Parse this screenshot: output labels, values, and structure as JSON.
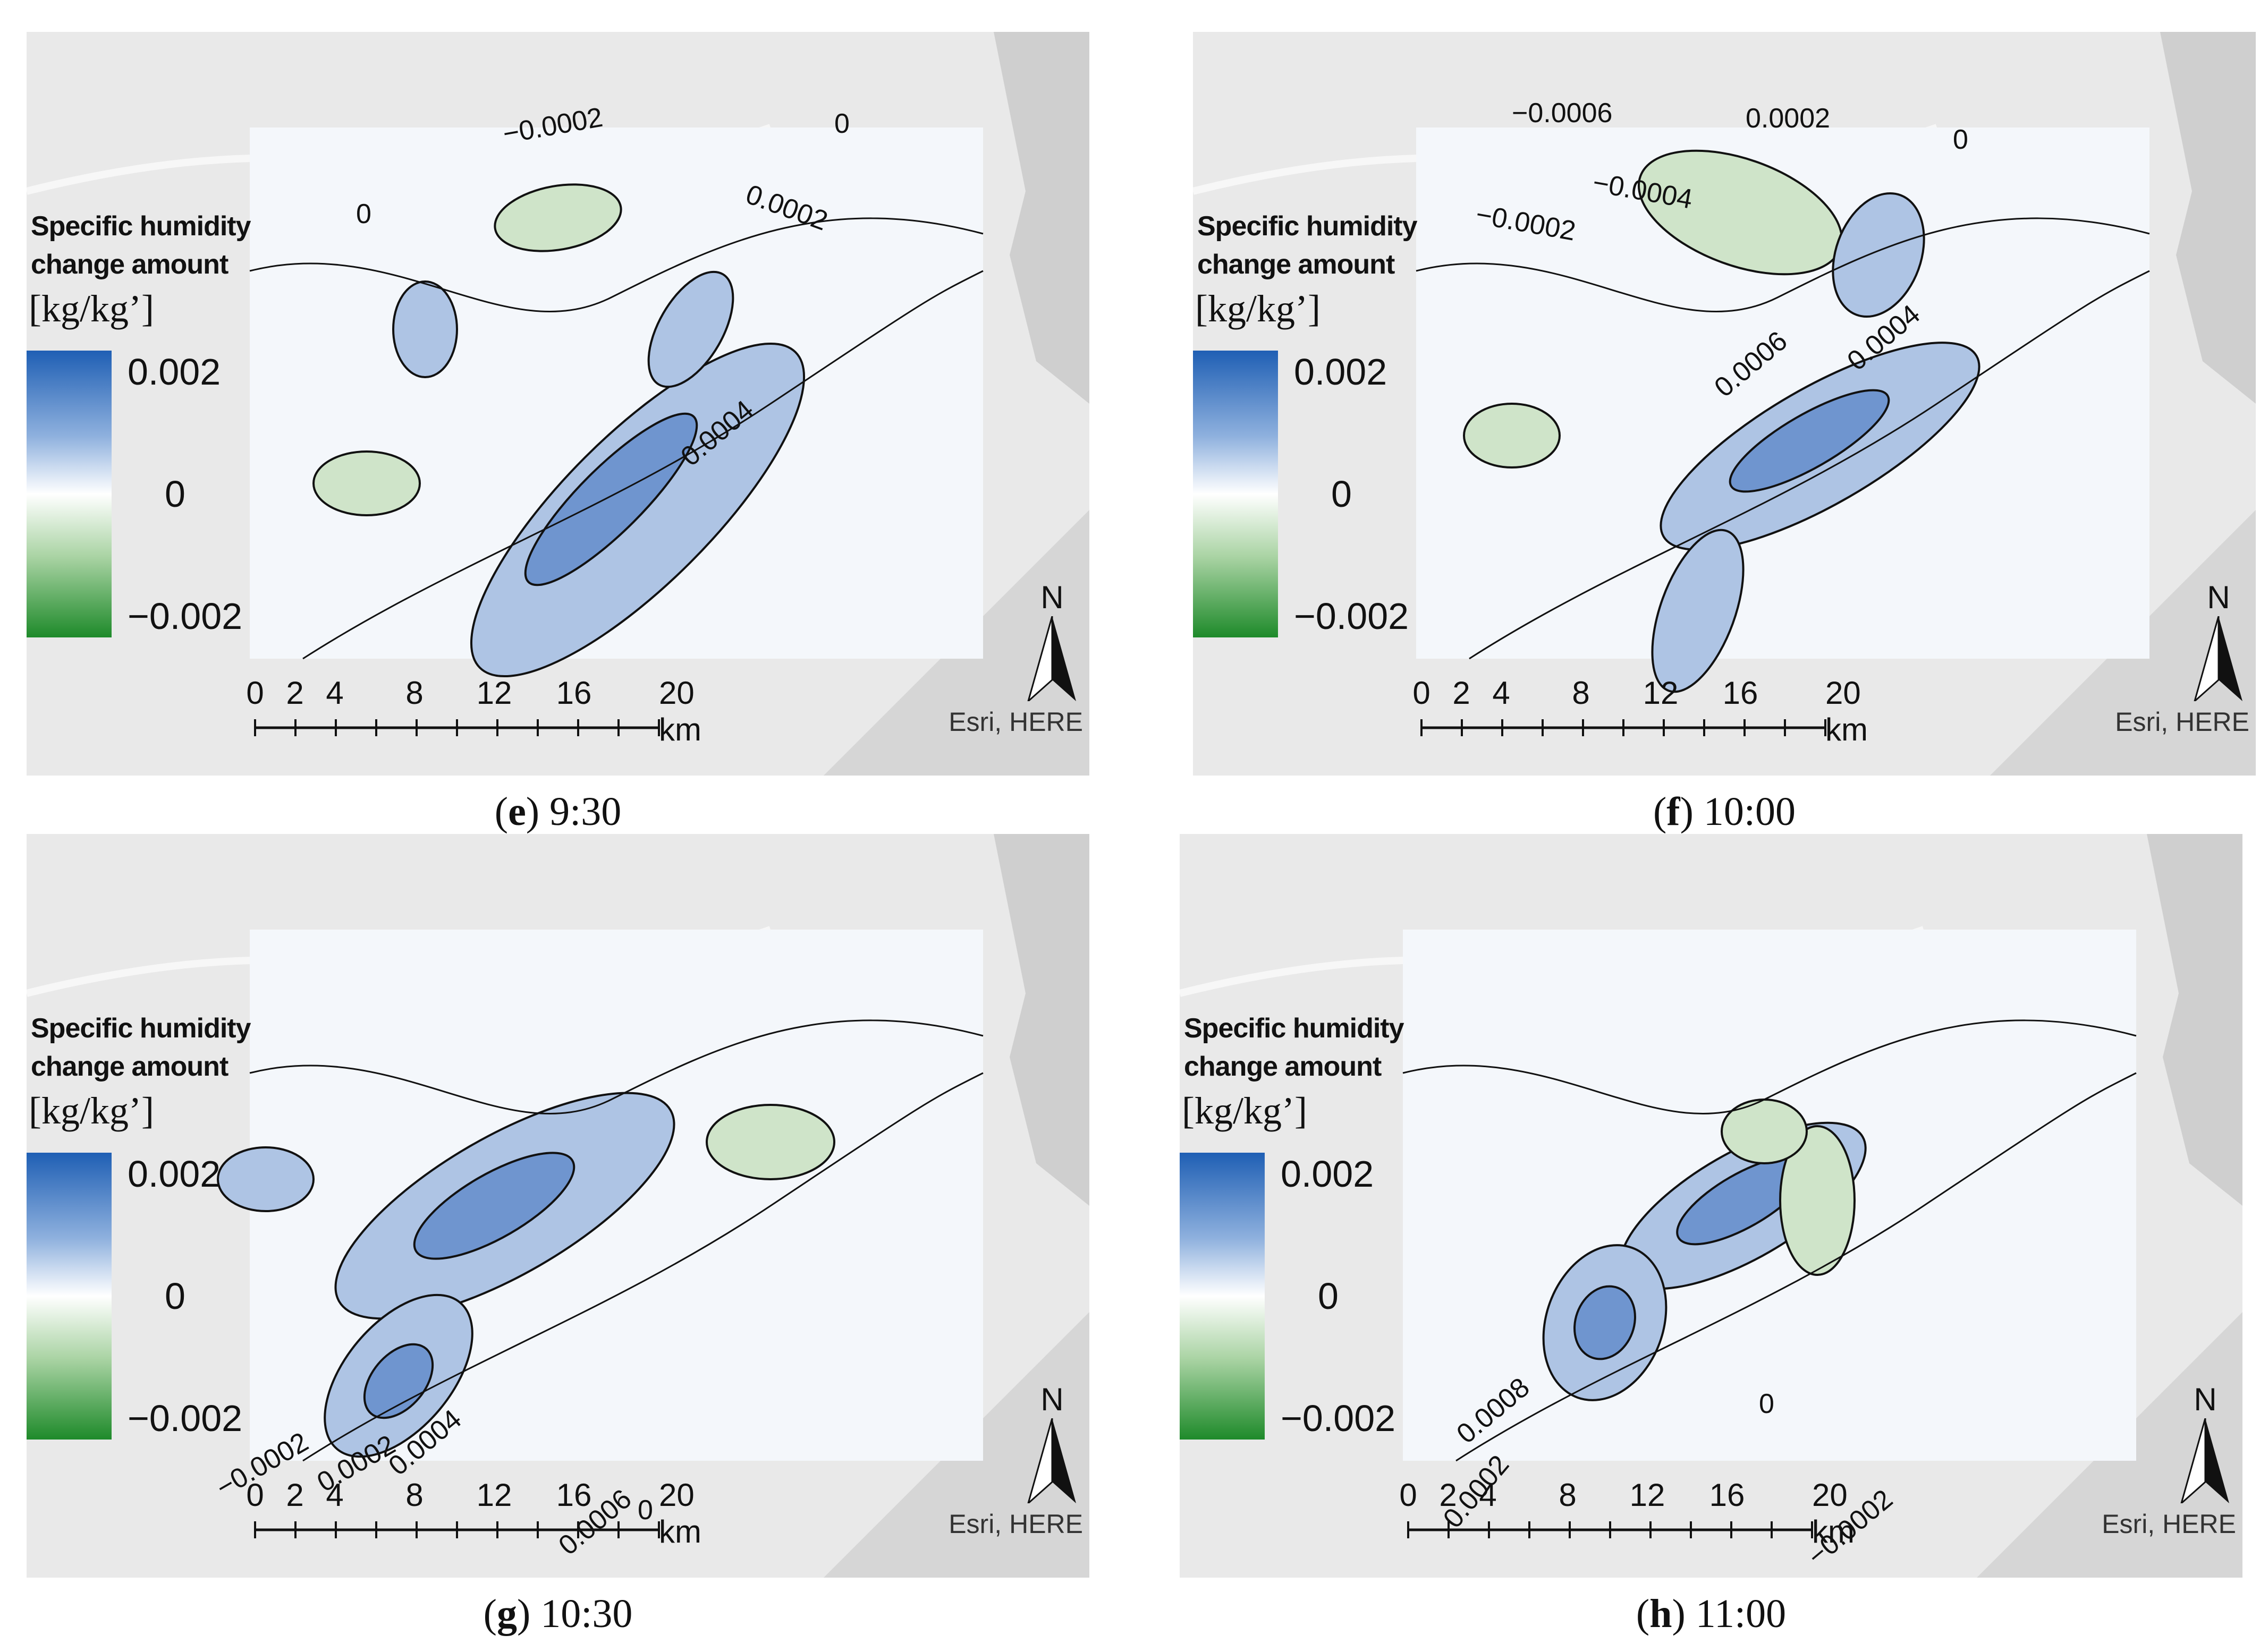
{
  "legend": {
    "title_line1": "Specific humidity",
    "title_line2": "change amount",
    "unit": "[kg/kg’]",
    "max": "0.002",
    "mid": "0",
    "min": "−0.002",
    "colors": {
      "high": "#1f5fb4",
      "zero": "#ffffff",
      "low": "#1e8a2a"
    }
  },
  "scale_bar": {
    "ticks": [
      "0",
      "2",
      "4",
      "8",
      "12",
      "16",
      "20 km"
    ]
  },
  "north_label": "N",
  "attribution": "Esri, HERE",
  "panels": [
    {
      "id": "e",
      "letter": "e",
      "time": "9:30",
      "contour_labels": [
        "−0.0002",
        "0",
        "0.0002",
        "0.0004",
        "0"
      ]
    },
    {
      "id": "f",
      "letter": "f",
      "time": "10:00",
      "contour_labels": [
        "−0.0006",
        "−0.0004",
        "−0.0002",
        "0.0002",
        "0.0006",
        "0.0004",
        "0"
      ]
    },
    {
      "id": "g",
      "letter": "g",
      "time": "10:30",
      "contour_labels": [
        "−0.0002",
        "0.0002",
        "0.0004",
        "0.0006",
        "0"
      ]
    },
    {
      "id": "h",
      "letter": "h",
      "time": "11:00",
      "contour_labels": [
        "0.0008",
        "0.0004",
        "0.0002",
        "−0.0002",
        "0"
      ]
    }
  ]
}
